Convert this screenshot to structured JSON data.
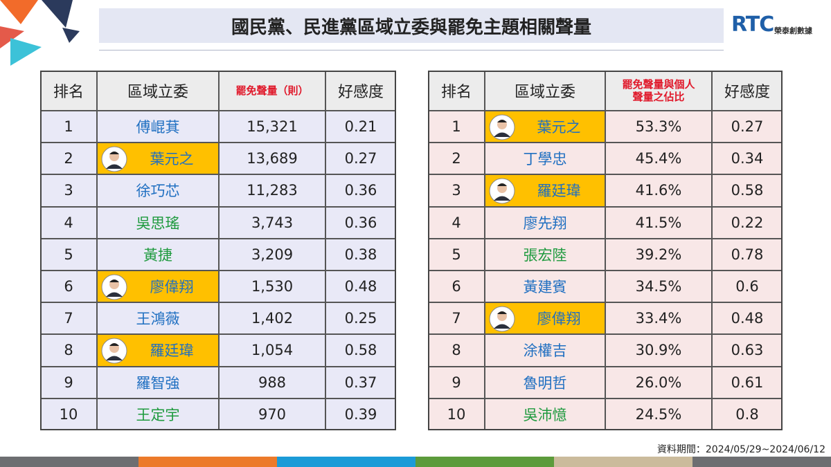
{
  "header": {
    "title": "國民黨、民進黨區域立委與罷免主題相關聲量",
    "logo": "RTC",
    "brand": "榮泰創數據"
  },
  "tables": [
    {
      "columns": [
        "排名",
        "區域立委",
        "罷免聲量（則）",
        "好感度"
      ],
      "body_color": "#e9e9f7",
      "rows": [
        {
          "cells": [
            "1",
            "傅崐萁",
            "15,321",
            "0.21"
          ],
          "color": "#1f6fc1",
          "highlight": false
        },
        {
          "cells": [
            "2",
            "葉元之",
            "13,689",
            "0.27"
          ],
          "color": "#1f6fc1",
          "highlight": true
        },
        {
          "cells": [
            "3",
            "徐巧芯",
            "11,283",
            "0.36"
          ],
          "color": "#1f6fc1",
          "highlight": false
        },
        {
          "cells": [
            "4",
            "吳思瑤",
            "3,743",
            "0.36"
          ],
          "color": "#1e9a3e",
          "highlight": false
        },
        {
          "cells": [
            "5",
            "黃捷",
            "3,209",
            "0.38"
          ],
          "color": "#1e9a3e",
          "highlight": false
        },
        {
          "cells": [
            "6",
            "廖偉翔",
            "1,530",
            "0.48"
          ],
          "color": "#1f6fc1",
          "highlight": true
        },
        {
          "cells": [
            "7",
            "王鴻薇",
            "1,402",
            "0.25"
          ],
          "color": "#1f6fc1",
          "highlight": false
        },
        {
          "cells": [
            "8",
            "羅廷瑋",
            "1,054",
            "0.58"
          ],
          "color": "#1f6fc1",
          "highlight": true
        },
        {
          "cells": [
            "9",
            "羅智強",
            "988",
            "0.37"
          ],
          "color": "#1f6fc1",
          "highlight": false
        },
        {
          "cells": [
            "10",
            "王定宇",
            "970",
            "0.39"
          ],
          "color": "#1e9a3e",
          "highlight": false
        }
      ]
    },
    {
      "columns": [
        "排名",
        "區域立委",
        "罷免聲量與個人聲量之佔比",
        "好感度"
      ],
      "body_color": "#f8e7e7",
      "rows": [
        {
          "cells": [
            "1",
            "葉元之",
            "53.3%",
            "0.27"
          ],
          "color": "#1f6fc1",
          "highlight": true
        },
        {
          "cells": [
            "2",
            "丁學忠",
            "45.4%",
            "0.34"
          ],
          "color": "#1f6fc1",
          "highlight": false
        },
        {
          "cells": [
            "3",
            "羅廷瑋",
            "41.6%",
            "0.58"
          ],
          "color": "#1f6fc1",
          "highlight": true
        },
        {
          "cells": [
            "4",
            "廖先翔",
            "41.5%",
            "0.22"
          ],
          "color": "#1f6fc1",
          "highlight": false
        },
        {
          "cells": [
            "5",
            "張宏陸",
            "39.2%",
            "0.78"
          ],
          "color": "#1e9a3e",
          "highlight": false
        },
        {
          "cells": [
            "6",
            "黃建賓",
            "34.5%",
            "0.6"
          ],
          "color": "#1f6fc1",
          "highlight": false
        },
        {
          "cells": [
            "7",
            "廖偉翔",
            "33.4%",
            "0.48"
          ],
          "color": "#1f6fc1",
          "highlight": true
        },
        {
          "cells": [
            "8",
            "涂權吉",
            "30.9%",
            "0.63"
          ],
          "color": "#1f6fc1",
          "highlight": false
        },
        {
          "cells": [
            "9",
            "魯明哲",
            "26.0%",
            "0.61"
          ],
          "color": "#1f6fc1",
          "highlight": false
        },
        {
          "cells": [
            "10",
            "吳沛憶",
            "24.5%",
            "0.8"
          ],
          "color": "#1e9a3e",
          "highlight": false
        }
      ]
    }
  ],
  "footer": "資料期間：2024/05/29~2024/06/12"
}
